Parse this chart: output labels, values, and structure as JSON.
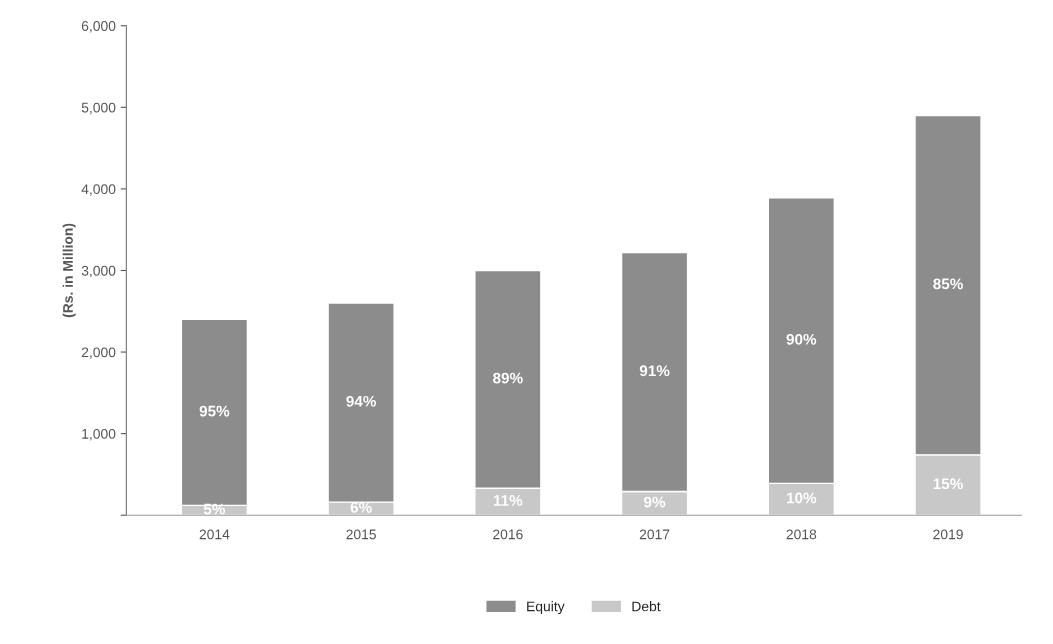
{
  "chart_data": {
    "type": "bar",
    "stacked": true,
    "ylabel": "(Rs. in Million)",
    "categories": [
      "2014",
      "2015",
      "2016",
      "2017",
      "2018",
      "2019"
    ],
    "series": [
      {
        "name": "Debt",
        "color": "#c8c8c8",
        "values": [
          120,
          160,
          330,
          290,
          390,
          740
        ]
      },
      {
        "name": "Equity",
        "color": "#8c8c8c",
        "values": [
          2280,
          2440,
          2670,
          2930,
          3500,
          4160
        ]
      }
    ],
    "annotations": [
      "5%",
      "6%",
      "11%",
      "9%",
      "10%",
      "15%",
      "95%",
      "94%",
      "89%",
      "91%",
      "90%",
      "85%"
    ],
    "ylim": [
      0,
      6000
    ],
    "yticks": [
      {
        "value": 0,
        "label": null
      },
      {
        "value": 1000,
        "label": "1,000"
      },
      {
        "value": 2000,
        "label": "2,000"
      },
      {
        "value": 3000,
        "label": "3,000"
      },
      {
        "value": 4000,
        "label": "4,000"
      },
      {
        "value": 5000,
        "label": "5,000"
      },
      {
        "value": 6000,
        "label": "6,000"
      }
    ],
    "legend": "bottom",
    "grid": false
  }
}
